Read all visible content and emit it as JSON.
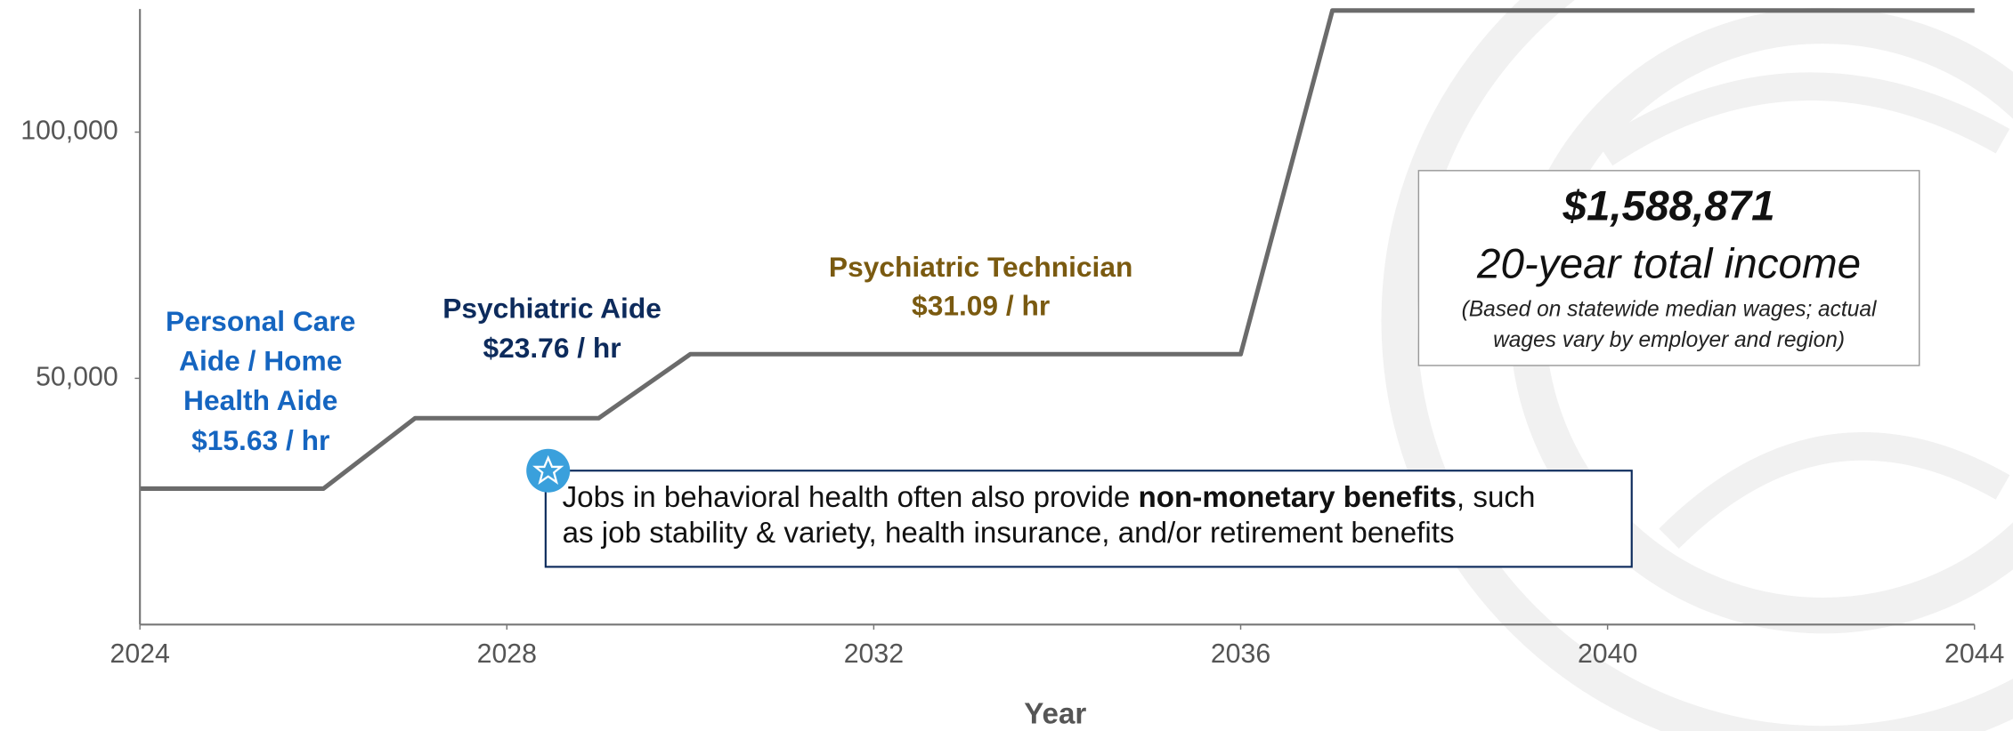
{
  "chart_data": {
    "type": "line",
    "x_label": "Year",
    "x": [
      2024,
      2025,
      2026,
      2027,
      2028,
      2029,
      2030,
      2031,
      2032,
      2033,
      2034,
      2035,
      2036,
      2037,
      2038,
      2039,
      2040,
      2041,
      2042,
      2043,
      2044
    ],
    "series": [
      {
        "color": "#6b6b6b",
        "values": [
          27600,
          27600,
          27600,
          41900,
          41900,
          41900,
          54900,
          54900,
          54900,
          54900,
          54900,
          54900,
          54900,
          124700,
          124700,
          124700,
          124700,
          124700,
          124700,
          124700,
          124700
        ]
      }
    ],
    "xlim": [
      2024,
      2044
    ],
    "xticks": [
      2024,
      2028,
      2032,
      2036,
      2040,
      2044
    ],
    "ylim": [
      0,
      125000
    ],
    "yticks": [
      {
        "value": 50000,
        "label": "50,000"
      },
      {
        "value": 100000,
        "label": "100,000"
      }
    ],
    "roles": [
      {
        "lines": [
          "Personal Care",
          "Aide / Home",
          "Health Aide",
          "$15.63 / hr"
        ],
        "color": "#1565c0"
      },
      {
        "lines": [
          "Psychiatric Aide",
          "$23.76 / hr"
        ],
        "color": "#0d2b5c"
      },
      {
        "lines": [
          "Psychiatric Technician",
          "$31.09 / hr"
        ],
        "color": "#7a5a10"
      }
    ],
    "total_box": {
      "amount": "$1,588,871",
      "label": "20-year total income",
      "note": [
        "(Based on statewide median wages; actual",
        "wages vary by employer and region)"
      ]
    },
    "benefits_box": {
      "line1": [
        "Jobs in behavioral health often also provide ",
        "non-monetary benefits",
        ", such"
      ],
      "line2": "as job stability & variety, health insurance, and/or retirement benefits"
    }
  }
}
